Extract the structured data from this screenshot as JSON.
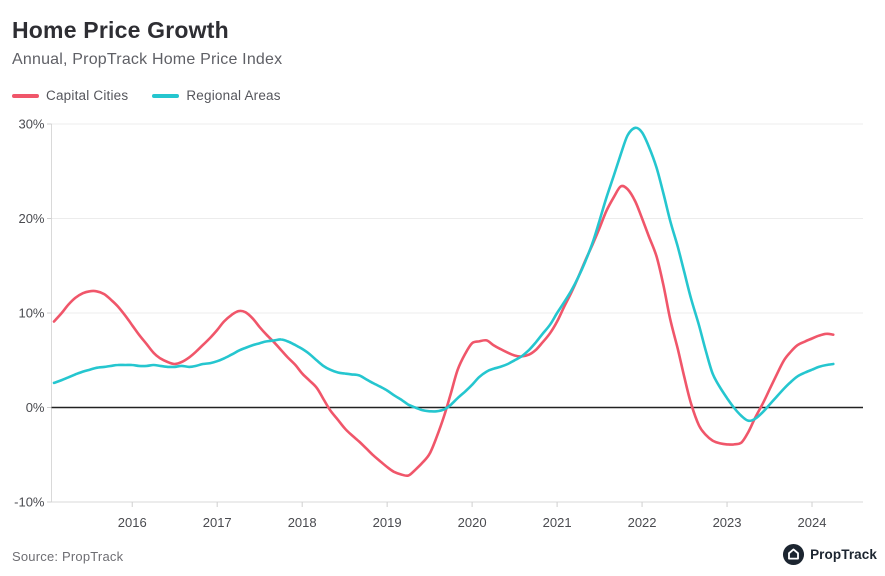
{
  "header": {
    "title": "Home Price Growth",
    "subtitle": "Annual, PropTrack Home Price Index"
  },
  "footer": {
    "source": "Source: PropTrack",
    "logo_text": "PropTrack",
    "logo_icon": "house-in-circle-icon"
  },
  "colors": {
    "capital_cities": "#f0566a",
    "regional_areas": "#25c6cf",
    "zero_line": "#222222",
    "gridline": "#ececec",
    "axis_line": "#d9d9d9",
    "tick": "#cfcfcf",
    "axis_text": "#4a4b50",
    "logo_bg": "#1c2530"
  },
  "chart_data": {
    "type": "line",
    "title": "Home Price Growth",
    "subtitle": "Annual, PropTrack Home Price Index",
    "xlabel": "",
    "ylabel": "",
    "grid": "horizontal-only",
    "legend_position": "top-left",
    "x_axis": {
      "range": [
        2015.05,
        2024.6
      ],
      "ticks": [
        2016,
        2017,
        2018,
        2019,
        2020,
        2021,
        2022,
        2023,
        2024
      ],
      "tick_labels": [
        "2016",
        "2017",
        "2018",
        "2019",
        "2020",
        "2021",
        "2022",
        "2023",
        "2024"
      ]
    },
    "y_axis": {
      "range": [
        -10,
        30
      ],
      "ticks": [
        30,
        20,
        10,
        0,
        -10
      ],
      "tick_labels": [
        "30%",
        "20%",
        "10%",
        "0%",
        "-10%"
      ],
      "zero_line": true
    },
    "series": [
      {
        "name": "Capital Cities",
        "color": "#f0566a",
        "points": [
          [
            2015.08,
            9.1
          ],
          [
            2015.17,
            10.0
          ],
          [
            2015.25,
            10.9
          ],
          [
            2015.33,
            11.6
          ],
          [
            2015.42,
            12.1
          ],
          [
            2015.5,
            12.3
          ],
          [
            2015.58,
            12.3
          ],
          [
            2015.67,
            12.0
          ],
          [
            2015.75,
            11.4
          ],
          [
            2015.83,
            10.7
          ],
          [
            2015.92,
            9.7
          ],
          [
            2016.0,
            8.7
          ],
          [
            2016.08,
            7.7
          ],
          [
            2016.17,
            6.7
          ],
          [
            2016.25,
            5.8
          ],
          [
            2016.33,
            5.2
          ],
          [
            2016.42,
            4.8
          ],
          [
            2016.5,
            4.6
          ],
          [
            2016.58,
            4.8
          ],
          [
            2016.67,
            5.3
          ],
          [
            2016.75,
            5.9
          ],
          [
            2016.83,
            6.6
          ],
          [
            2016.92,
            7.4
          ],
          [
            2017.0,
            8.2
          ],
          [
            2017.08,
            9.1
          ],
          [
            2017.17,
            9.8
          ],
          [
            2017.25,
            10.2
          ],
          [
            2017.33,
            10.1
          ],
          [
            2017.42,
            9.4
          ],
          [
            2017.5,
            8.5
          ],
          [
            2017.58,
            7.7
          ],
          [
            2017.67,
            6.9
          ],
          [
            2017.75,
            6.1
          ],
          [
            2017.83,
            5.3
          ],
          [
            2017.92,
            4.5
          ],
          [
            2018.0,
            3.6
          ],
          [
            2018.08,
            2.9
          ],
          [
            2018.17,
            2.1
          ],
          [
            2018.25,
            0.9
          ],
          [
            2018.33,
            -0.3
          ],
          [
            2018.42,
            -1.3
          ],
          [
            2018.5,
            -2.2
          ],
          [
            2018.58,
            -2.9
          ],
          [
            2018.67,
            -3.6
          ],
          [
            2018.75,
            -4.3
          ],
          [
            2018.83,
            -5.0
          ],
          [
            2018.92,
            -5.7
          ],
          [
            2019.0,
            -6.3
          ],
          [
            2019.08,
            -6.8
          ],
          [
            2019.17,
            -7.1
          ],
          [
            2019.25,
            -7.2
          ],
          [
            2019.33,
            -6.6
          ],
          [
            2019.42,
            -5.8
          ],
          [
            2019.5,
            -4.9
          ],
          [
            2019.58,
            -3.2
          ],
          [
            2019.67,
            -0.9
          ],
          [
            2019.75,
            1.5
          ],
          [
            2019.83,
            4.0
          ],
          [
            2019.92,
            5.7
          ],
          [
            2020.0,
            6.8
          ],
          [
            2020.08,
            7.0
          ],
          [
            2020.17,
            7.1
          ],
          [
            2020.25,
            6.6
          ],
          [
            2020.33,
            6.2
          ],
          [
            2020.42,
            5.8
          ],
          [
            2020.5,
            5.5
          ],
          [
            2020.58,
            5.4
          ],
          [
            2020.67,
            5.6
          ],
          [
            2020.75,
            6.1
          ],
          [
            2020.83,
            6.9
          ],
          [
            2020.92,
            7.9
          ],
          [
            2021.0,
            9.1
          ],
          [
            2021.08,
            10.6
          ],
          [
            2021.17,
            12.2
          ],
          [
            2021.25,
            13.8
          ],
          [
            2021.33,
            15.5
          ],
          [
            2021.42,
            17.3
          ],
          [
            2021.5,
            19.0
          ],
          [
            2021.58,
            20.8
          ],
          [
            2021.67,
            22.3
          ],
          [
            2021.75,
            23.4
          ],
          [
            2021.83,
            23.1
          ],
          [
            2021.92,
            21.8
          ],
          [
            2022.0,
            20.0
          ],
          [
            2022.08,
            18.1
          ],
          [
            2022.17,
            16.0
          ],
          [
            2022.25,
            13.0
          ],
          [
            2022.33,
            9.4
          ],
          [
            2022.42,
            6.2
          ],
          [
            2022.5,
            3.1
          ],
          [
            2022.58,
            0.3
          ],
          [
            2022.67,
            -1.9
          ],
          [
            2022.75,
            -2.9
          ],
          [
            2022.83,
            -3.5
          ],
          [
            2022.92,
            -3.8
          ],
          [
            2023.0,
            -3.9
          ],
          [
            2023.08,
            -3.9
          ],
          [
            2023.17,
            -3.7
          ],
          [
            2023.25,
            -2.6
          ],
          [
            2023.33,
            -1.1
          ],
          [
            2023.42,
            0.4
          ],
          [
            2023.5,
            1.9
          ],
          [
            2023.58,
            3.4
          ],
          [
            2023.67,
            5.0
          ],
          [
            2023.75,
            5.9
          ],
          [
            2023.83,
            6.6
          ],
          [
            2023.92,
            7.0
          ],
          [
            2024.0,
            7.3
          ],
          [
            2024.08,
            7.6
          ],
          [
            2024.17,
            7.8
          ],
          [
            2024.25,
            7.7
          ]
        ]
      },
      {
        "name": "Regional Areas",
        "color": "#25c6cf",
        "points": [
          [
            2015.08,
            2.6
          ],
          [
            2015.17,
            2.9
          ],
          [
            2015.25,
            3.2
          ],
          [
            2015.33,
            3.5
          ],
          [
            2015.42,
            3.8
          ],
          [
            2015.5,
            4.0
          ],
          [
            2015.58,
            4.2
          ],
          [
            2015.67,
            4.3
          ],
          [
            2015.75,
            4.4
          ],
          [
            2015.83,
            4.5
          ],
          [
            2015.92,
            4.5
          ],
          [
            2016.0,
            4.5
          ],
          [
            2016.08,
            4.4
          ],
          [
            2016.17,
            4.4
          ],
          [
            2016.25,
            4.5
          ],
          [
            2016.33,
            4.4
          ],
          [
            2016.42,
            4.3
          ],
          [
            2016.5,
            4.3
          ],
          [
            2016.58,
            4.4
          ],
          [
            2016.67,
            4.3
          ],
          [
            2016.75,
            4.4
          ],
          [
            2016.83,
            4.6
          ],
          [
            2016.92,
            4.7
          ],
          [
            2017.0,
            4.9
          ],
          [
            2017.08,
            5.2
          ],
          [
            2017.17,
            5.6
          ],
          [
            2017.25,
            6.0
          ],
          [
            2017.33,
            6.3
          ],
          [
            2017.42,
            6.6
          ],
          [
            2017.5,
            6.8
          ],
          [
            2017.58,
            7.0
          ],
          [
            2017.67,
            7.1
          ],
          [
            2017.75,
            7.2
          ],
          [
            2017.83,
            7.0
          ],
          [
            2017.92,
            6.6
          ],
          [
            2018.0,
            6.2
          ],
          [
            2018.08,
            5.7
          ],
          [
            2018.17,
            5.0
          ],
          [
            2018.25,
            4.4
          ],
          [
            2018.33,
            4.0
          ],
          [
            2018.42,
            3.7
          ],
          [
            2018.5,
            3.6
          ],
          [
            2018.58,
            3.5
          ],
          [
            2018.67,
            3.4
          ],
          [
            2018.75,
            3.0
          ],
          [
            2018.83,
            2.6
          ],
          [
            2018.92,
            2.2
          ],
          [
            2019.0,
            1.8
          ],
          [
            2019.08,
            1.3
          ],
          [
            2019.17,
            0.8
          ],
          [
            2019.25,
            0.3
          ],
          [
            2019.33,
            0.0
          ],
          [
            2019.42,
            -0.3
          ],
          [
            2019.5,
            -0.4
          ],
          [
            2019.58,
            -0.4
          ],
          [
            2019.67,
            -0.2
          ],
          [
            2019.75,
            0.3
          ],
          [
            2019.83,
            1.0
          ],
          [
            2019.92,
            1.7
          ],
          [
            2020.0,
            2.4
          ],
          [
            2020.08,
            3.2
          ],
          [
            2020.17,
            3.8
          ],
          [
            2020.25,
            4.1
          ],
          [
            2020.33,
            4.3
          ],
          [
            2020.42,
            4.6
          ],
          [
            2020.5,
            5.0
          ],
          [
            2020.58,
            5.4
          ],
          [
            2020.67,
            6.1
          ],
          [
            2020.75,
            6.9
          ],
          [
            2020.83,
            7.8
          ],
          [
            2020.92,
            8.8
          ],
          [
            2021.0,
            10.0
          ],
          [
            2021.08,
            11.1
          ],
          [
            2021.17,
            12.4
          ],
          [
            2021.25,
            13.8
          ],
          [
            2021.33,
            15.4
          ],
          [
            2021.42,
            17.5
          ],
          [
            2021.5,
            19.8
          ],
          [
            2021.58,
            22.2
          ],
          [
            2021.67,
            24.6
          ],
          [
            2021.75,
            26.8
          ],
          [
            2021.83,
            28.8
          ],
          [
            2021.92,
            29.6
          ],
          [
            2022.0,
            29.1
          ],
          [
            2022.08,
            27.6
          ],
          [
            2022.17,
            25.4
          ],
          [
            2022.25,
            22.7
          ],
          [
            2022.33,
            19.8
          ],
          [
            2022.42,
            17.0
          ],
          [
            2022.5,
            14.2
          ],
          [
            2022.58,
            11.4
          ],
          [
            2022.67,
            8.7
          ],
          [
            2022.75,
            6.0
          ],
          [
            2022.83,
            3.6
          ],
          [
            2022.92,
            2.1
          ],
          [
            2023.0,
            1.0
          ],
          [
            2023.08,
            0.0
          ],
          [
            2023.17,
            -0.9
          ],
          [
            2023.25,
            -1.4
          ],
          [
            2023.33,
            -1.2
          ],
          [
            2023.42,
            -0.5
          ],
          [
            2023.5,
            0.3
          ],
          [
            2023.58,
            1.1
          ],
          [
            2023.67,
            2.0
          ],
          [
            2023.75,
            2.7
          ],
          [
            2023.83,
            3.3
          ],
          [
            2023.92,
            3.7
          ],
          [
            2024.0,
            4.0
          ],
          [
            2024.08,
            4.3
          ],
          [
            2024.17,
            4.5
          ],
          [
            2024.25,
            4.6
          ]
        ]
      }
    ]
  }
}
